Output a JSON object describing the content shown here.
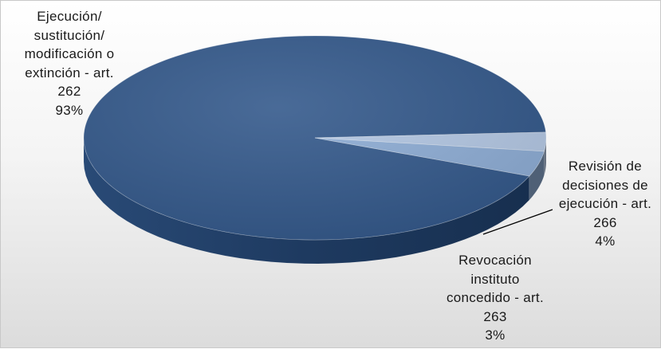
{
  "chart_data": {
    "type": "pie",
    "style": "3d",
    "slices": [
      {
        "name": "Ejecución/ sustitución/ modificación o extinción - art. 262",
        "label_lines": [
          "Ejecución/",
          "sustitución/",
          "modificación o",
          "extinción - art.",
          "262"
        ],
        "value": 93,
        "pct_label": "93%",
        "color": "#355a8c"
      },
      {
        "name": "Revocación instituto concedido - art. 263",
        "label_lines": [
          "Revocación",
          "instituto",
          "concedido - art.",
          "263"
        ],
        "value": 3,
        "pct_label": "3%",
        "color": "#b4c8e4"
      },
      {
        "name": "Revisión de decisiones de ejecución - art. 266",
        "label_lines": [
          "Revisión de",
          "decisiones de",
          "ejecución - art.",
          "266"
        ],
        "value": 4,
        "pct_label": "4%",
        "color": "#8faed6"
      }
    ]
  }
}
